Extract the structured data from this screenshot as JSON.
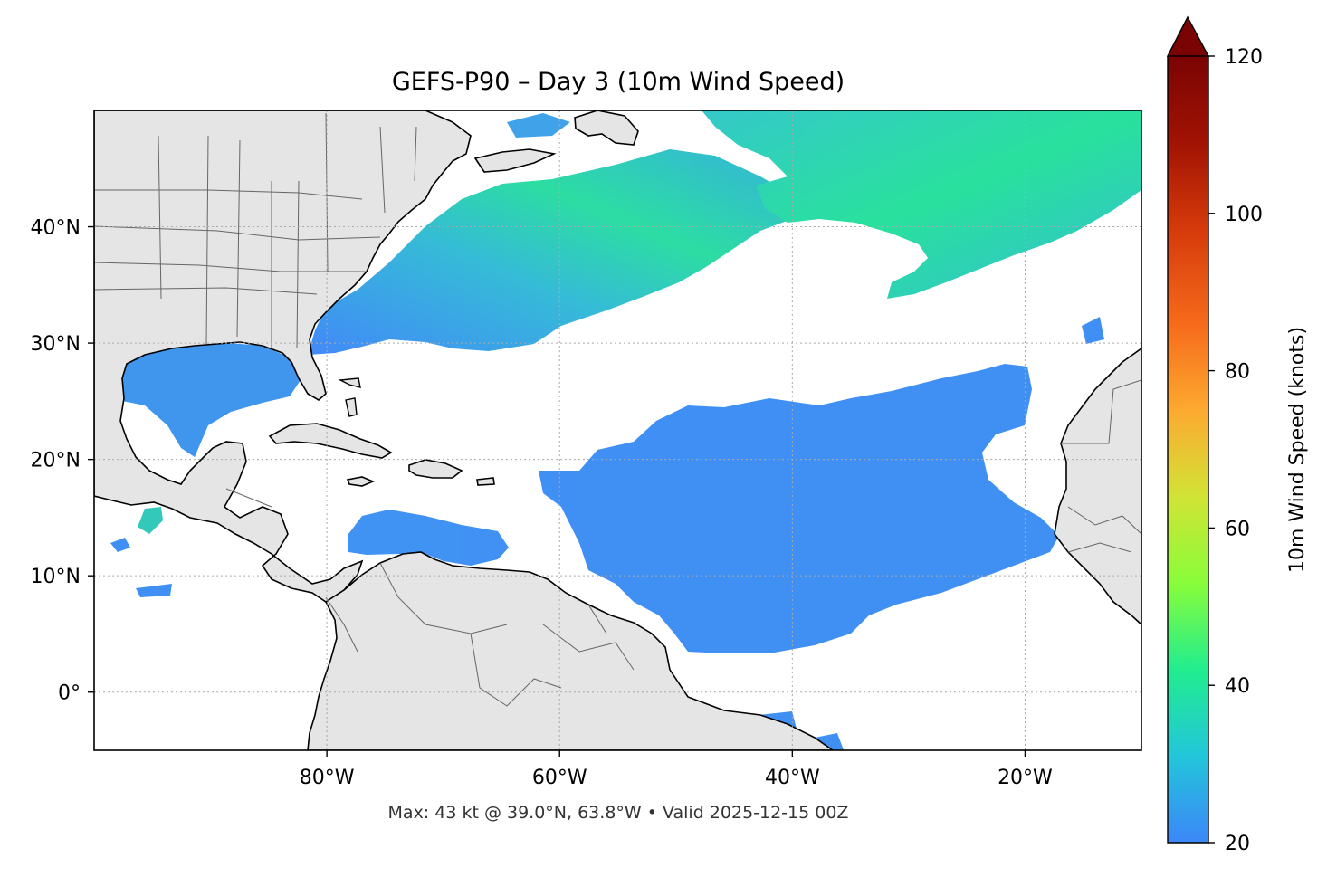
{
  "title": "GEFS-P90 – Day 3 (10m Wind Speed)",
  "footer": "Max: 43 kt @ 39.0°N, 63.8°W • Valid 2025-12-15 00Z",
  "map": {
    "lon_range": [
      -100,
      -10
    ],
    "lat_range": [
      -5,
      50
    ],
    "x_ticks": [
      {
        "value": -80,
        "label": "80°W"
      },
      {
        "value": -60,
        "label": "60°W"
      },
      {
        "value": -40,
        "label": "40°W"
      },
      {
        "value": -20,
        "label": "20°W"
      }
    ],
    "y_ticks": [
      {
        "value": 40,
        "label": "40°N"
      },
      {
        "value": 30,
        "label": "30°N"
      },
      {
        "value": 20,
        "label": "20°N"
      },
      {
        "value": 10,
        "label": "10°N"
      },
      {
        "value": 0,
        "label": "0°"
      }
    ],
    "gridlines": true,
    "land_color": "#e5e5e5",
    "coast_color": "#000000",
    "border_color": "#666666"
  },
  "colorbar": {
    "label": "10m Wind Speed (knots)",
    "range": [
      20,
      120
    ],
    "extend": "max",
    "over_color": "#7a0403",
    "ticks": [
      {
        "value": 20,
        "label": "20"
      },
      {
        "value": 40,
        "label": "40"
      },
      {
        "value": 60,
        "label": "60"
      },
      {
        "value": 80,
        "label": "80"
      },
      {
        "value": 100,
        "label": "100"
      },
      {
        "value": 120,
        "label": "120"
      }
    ],
    "colors": [
      "#3c86f8",
      "#22c6da",
      "#21ed8e",
      "#89fd3a",
      "#d1e335",
      "#fda930",
      "#f66a1b",
      "#d53a0b",
      "#a11303",
      "#7a0403"
    ]
  },
  "wind_max": {
    "value_kt": 43,
    "lat": 39.0,
    "lon": -63.8
  }
}
